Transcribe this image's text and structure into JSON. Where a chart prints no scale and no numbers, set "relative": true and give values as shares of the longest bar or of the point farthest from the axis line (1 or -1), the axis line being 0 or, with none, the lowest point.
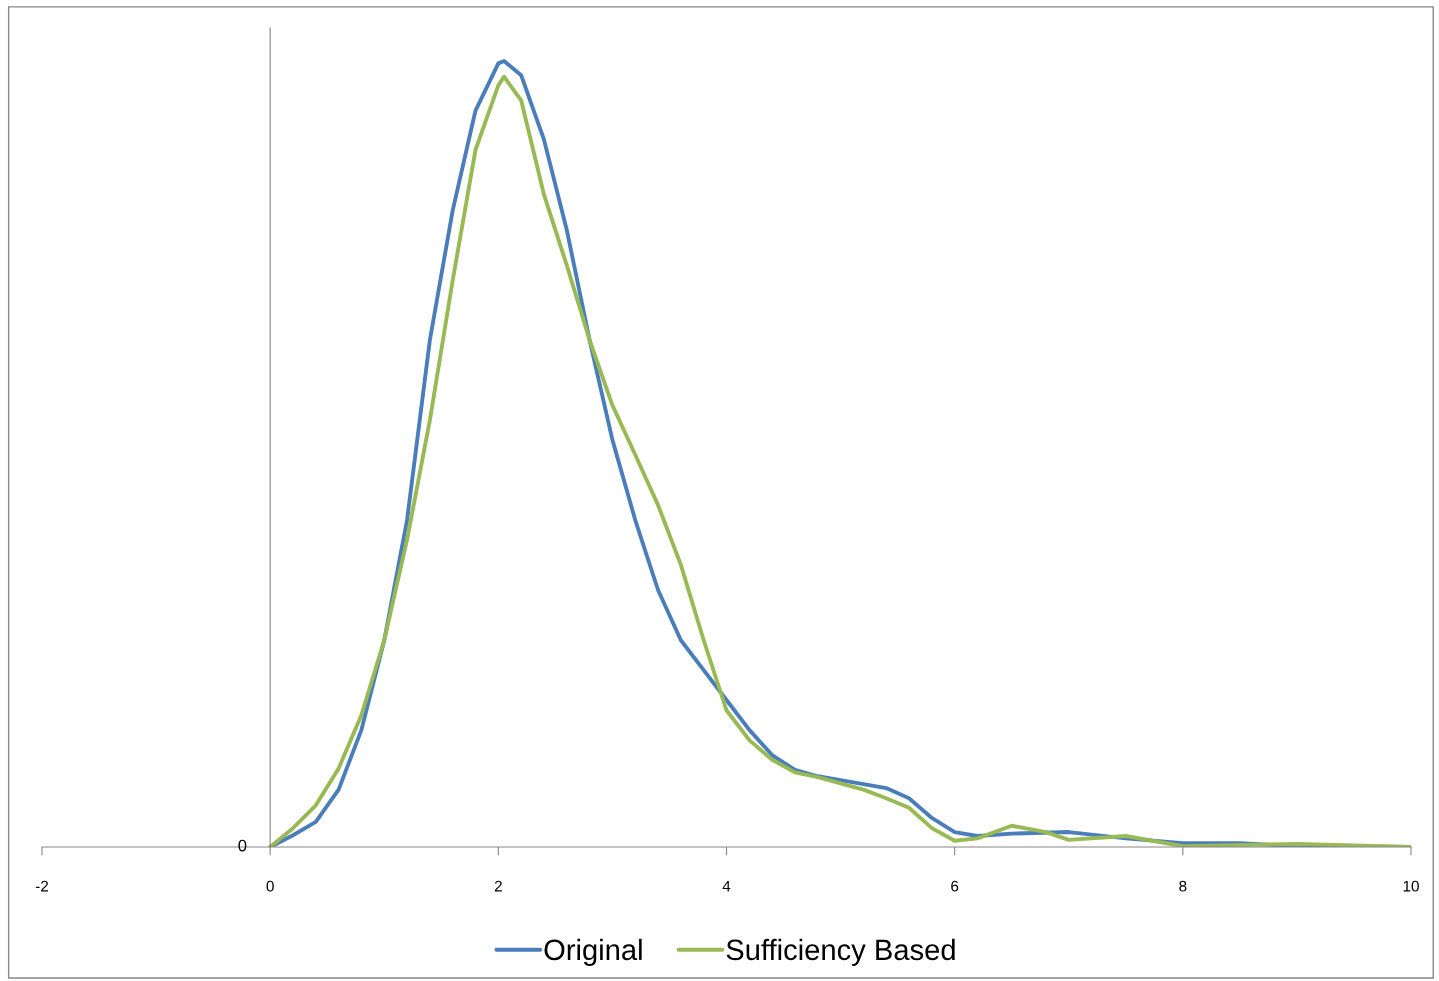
{
  "chart_data": {
    "type": "line",
    "relative": true,
    "xlim": [
      -2,
      10
    ],
    "xticks": [
      -2,
      0,
      2,
      4,
      6,
      8,
      10
    ],
    "legend": "bottom",
    "marker": "none",
    "line_style": "solid",
    "annotations": [
      "0"
    ],
    "series": [
      {
        "name": "Original",
        "color": "#4a7ebb",
        "x": [
          0,
          0.2,
          0.4,
          0.6,
          0.8,
          1.0,
          1.2,
          1.4,
          1.6,
          1.8,
          2.0,
          2.05,
          2.2,
          2.4,
          2.6,
          2.8,
          3.0,
          3.2,
          3.4,
          3.6,
          3.8,
          4.0,
          4.2,
          4.4,
          4.6,
          4.8,
          5.0,
          5.2,
          5.4,
          5.6,
          5.8,
          6.0,
          6.2,
          6.5,
          7.0,
          7.5,
          8.0,
          8.5,
          9.0,
          10
        ],
        "values": [
          0,
          0.015,
          0.032,
          0.073,
          0.149,
          0.263,
          0.416,
          0.645,
          0.81,
          0.937,
          0.997,
          1.0,
          0.982,
          0.9,
          0.785,
          0.645,
          0.518,
          0.416,
          0.327,
          0.263,
          0.225,
          0.187,
          0.149,
          0.117,
          0.098,
          0.09,
          0.085,
          0.08,
          0.075,
          0.062,
          0.037,
          0.019,
          0.014,
          0.017,
          0.019,
          0.011,
          0.005,
          0.005,
          0.001,
          0
        ]
      },
      {
        "name": "Sufficiency Based",
        "color": "#98b954",
        "x": [
          0,
          0.2,
          0.4,
          0.6,
          0.8,
          1.0,
          1.2,
          1.4,
          1.6,
          1.8,
          2.0,
          2.05,
          2.2,
          2.4,
          2.6,
          2.8,
          3.0,
          3.2,
          3.4,
          3.6,
          3.8,
          4.0,
          4.2,
          4.4,
          4.6,
          4.8,
          5.0,
          5.2,
          5.4,
          5.6,
          5.8,
          6.0,
          6.2,
          6.5,
          6.8,
          7.0,
          7.5,
          8.0,
          9.0,
          10
        ],
        "values": [
          0,
          0.024,
          0.053,
          0.1,
          0.168,
          0.263,
          0.391,
          0.543,
          0.721,
          0.887,
          0.969,
          0.98,
          0.95,
          0.83,
          0.74,
          0.645,
          0.562,
          0.499,
          0.435,
          0.359,
          0.263,
          0.174,
          0.136,
          0.111,
          0.095,
          0.089,
          0.081,
          0.073,
          0.062,
          0.05,
          0.024,
          0.008,
          0.011,
          0.027,
          0.019,
          0.009,
          0.014,
          0.001,
          0.004,
          0
        ]
      }
    ]
  }
}
